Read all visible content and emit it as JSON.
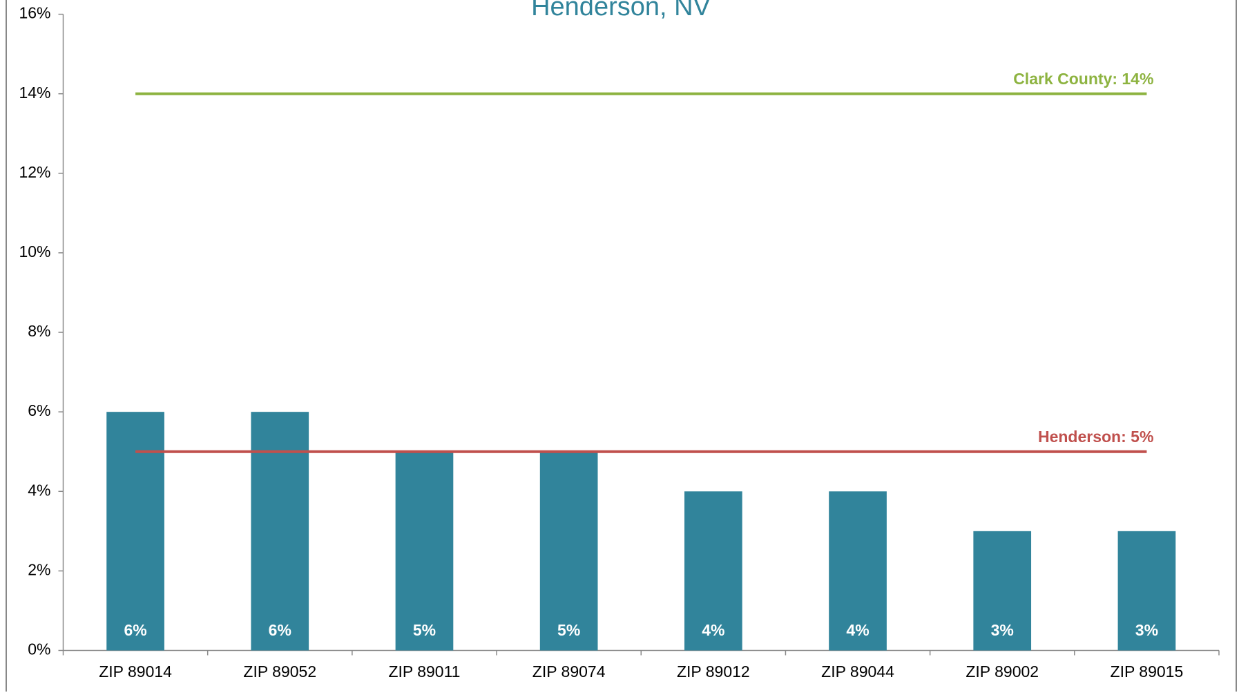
{
  "chart_data": {
    "type": "bar",
    "title": "Henderson, NV",
    "categories": [
      "ZIP 89014",
      "ZIP 89052",
      "ZIP 89011",
      "ZIP 89074",
      "ZIP 89012",
      "ZIP 89044",
      "ZIP 89002",
      "ZIP 89015"
    ],
    "values": [
      6,
      6,
      5,
      5,
      4,
      4,
      3,
      3
    ],
    "value_labels": [
      "6%",
      "6%",
      "5%",
      "5%",
      "4%",
      "4%",
      "3%",
      "3%"
    ],
    "color": "#31849b",
    "ylim": [
      0,
      16
    ],
    "yticks": [
      {
        "value": 0,
        "label": "0%"
      },
      {
        "value": 2,
        "label": "2%"
      },
      {
        "value": 4,
        "label": "4%"
      },
      {
        "value": 6,
        "label": "6%"
      },
      {
        "value": 8,
        "label": "8%"
      },
      {
        "value": 10,
        "label": "10%"
      },
      {
        "value": 12,
        "label": "12%"
      },
      {
        "value": 14,
        "label": "14%"
      },
      {
        "value": 16,
        "label": "16%"
      }
    ],
    "reference_lines": [
      {
        "label": "Clark County: 14%",
        "value": 14,
        "color": "#8db340"
      },
      {
        "label": "Henderson: 5%",
        "value": 5,
        "color": "#c0504d"
      }
    ]
  }
}
